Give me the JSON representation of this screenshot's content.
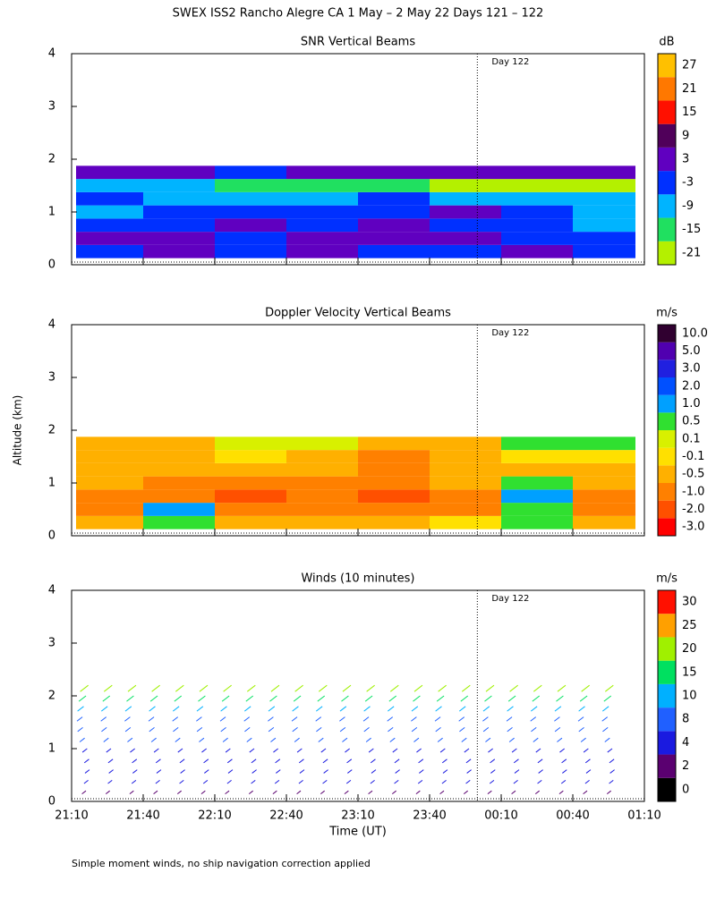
{
  "title": "SWEX ISS2 Rancho Alegre CA    1 May –  2 May 22 Days 121 – 122",
  "footnote": "Simple moment winds, no ship navigation correction applied",
  "chart_data": [
    {
      "type": "heatmap",
      "title": "SNR Vertical Beams",
      "xlim": [
        1270,
        1510
      ],
      "ylim": [
        0,
        4
      ],
      "yticks": [
        0,
        1,
        2,
        3,
        4
      ],
      "annotation": {
        "text": "Day 122",
        "x": 1440
      },
      "x": [
        1285,
        1315,
        1345,
        1375,
        1405,
        1435,
        1465,
        1495
      ],
      "altitude": [
        0.25,
        0.5,
        0.75,
        1.0,
        1.25,
        1.5,
        1.75
      ],
      "z": [
        [
          -3,
          3,
          -3,
          3,
          -3,
          -3,
          3,
          -3
        ],
        [
          3,
          3,
          -3,
          3,
          3,
          3,
          -3,
          -3
        ],
        [
          -3,
          -3,
          3,
          -3,
          3,
          -3,
          -3,
          -9
        ],
        [
          -9,
          -3,
          -3,
          -3,
          -3,
          3,
          -3,
          -9
        ],
        [
          -3,
          -9,
          -9,
          -9,
          -3,
          -9,
          -9,
          -9
        ],
        [
          -9,
          -9,
          -15,
          -15,
          -15,
          -21,
          -21,
          -21
        ],
        [
          3,
          3,
          -3,
          3,
          3,
          3,
          3,
          3
        ]
      ],
      "colorbar": {
        "label": "dB",
        "ticks": [
          -21,
          -15,
          -9,
          -3,
          3,
          9,
          15,
          21,
          27
        ],
        "colors": [
          "#b4f000",
          "#20e060",
          "#00b4ff",
          "#0030ff",
          "#6000c0",
          "#50005a",
          "#ff1000",
          "#ff7800",
          "#ffc000"
        ]
      }
    },
    {
      "type": "heatmap",
      "title": "Doppler Velocity Vertical Beams",
      "ylabel": "Altitude (km)",
      "xlim": [
        1270,
        1510
      ],
      "ylim": [
        0,
        4
      ],
      "yticks": [
        0,
        1,
        2,
        3,
        4
      ],
      "annotation": {
        "text": "Day 122",
        "x": 1440
      },
      "x": [
        1285,
        1315,
        1345,
        1375,
        1405,
        1435,
        1465,
        1495
      ],
      "altitude": [
        0.25,
        0.5,
        0.75,
        1.0,
        1.25,
        1.5,
        1.75
      ],
      "z": [
        [
          -0.5,
          0.5,
          -0.5,
          -0.5,
          -0.5,
          -0.1,
          0.5,
          -0.5
        ],
        [
          -1,
          1,
          -1,
          -1,
          -1,
          -1,
          0.5,
          -1
        ],
        [
          -1,
          -1,
          -2,
          -1,
          -2,
          -1,
          1,
          -1
        ],
        [
          -0.5,
          -1,
          -1,
          -1,
          -1,
          -0.5,
          0.5,
          -0.5
        ],
        [
          -0.5,
          -0.5,
          -0.5,
          -0.5,
          -1,
          -0.5,
          -0.5,
          -0.5
        ],
        [
          -0.5,
          -0.5,
          -0.1,
          -0.5,
          -1,
          -0.5,
          -0.1,
          -0.1
        ],
        [
          -0.5,
          -0.5,
          0.1,
          0.1,
          -0.5,
          -0.5,
          0.5,
          0.5
        ]
      ],
      "colorbar": {
        "label": "m/s",
        "ticks": [
          {
            "value": -3,
            "label": "-3.0"
          },
          {
            "value": -2,
            "label": "-2.0"
          },
          {
            "value": -1,
            "label": "-1.0"
          },
          -0.5,
          -0.1,
          0.1,
          0.5,
          {
            "value": 1,
            "label": "1.0"
          },
          {
            "value": 2,
            "label": "2.0"
          },
          {
            "value": 3,
            "label": "3.0"
          },
          {
            "value": 5,
            "label": "5.0"
          },
          {
            "value": 10,
            "label": "10.0"
          }
        ],
        "colors": [
          "#ff0000",
          "#ff5000",
          "#ff8000",
          "#ffb000",
          "#ffe000",
          "#d8f000",
          "#30e030",
          "#00a0ff",
          "#0050ff",
          "#2020e0",
          "#5000b0",
          "#300030"
        ]
      }
    },
    {
      "type": "barbs",
      "title": "Winds (10 minutes)",
      "xlabel": "Time (UT)",
      "xlim": [
        1270,
        1510
      ],
      "ylim": [
        0,
        4
      ],
      "yticks": [
        0,
        1,
        2,
        3,
        4
      ],
      "xticks": [
        {
          "value": 1270,
          "label": "21:10"
        },
        {
          "value": 1300,
          "label": "21:40"
        },
        {
          "value": 1330,
          "label": "22:10"
        },
        {
          "value": 1360,
          "label": "22:40"
        },
        {
          "value": 1390,
          "label": "23:10"
        },
        {
          "value": 1420,
          "label": "23:40"
        },
        {
          "value": 1450,
          "label": "00:10"
        },
        {
          "value": 1480,
          "label": "00:40"
        },
        {
          "value": 1510,
          "label": "01:10"
        }
      ],
      "annotation": {
        "text": "Day 122",
        "x": 1440
      },
      "x": [
        1276,
        1286,
        1296,
        1306,
        1316,
        1326,
        1336,
        1346,
        1356,
        1366,
        1376,
        1386,
        1396,
        1406,
        1416,
        1426,
        1436,
        1446,
        1456,
        1466,
        1476,
        1486,
        1496
      ],
      "altitude": [
        0.2,
        0.4,
        0.6,
        0.8,
        1.0,
        1.2,
        1.4,
        1.6,
        1.8,
        2.0,
        2.2
      ],
      "speeds": [
        3,
        4,
        5,
        6,
        6,
        7,
        8,
        9,
        12,
        16,
        20
      ],
      "colorbar": {
        "label": "m/s",
        "ticks": [
          0,
          2,
          4,
          8,
          10,
          15,
          20,
          25,
          30
        ],
        "colors": [
          "#000000",
          "#5a0070",
          "#1a1ae0",
          "#2060ff",
          "#00b0ff",
          "#00e060",
          "#a0f000",
          "#ffa000",
          "#ff1000"
        ]
      }
    }
  ]
}
